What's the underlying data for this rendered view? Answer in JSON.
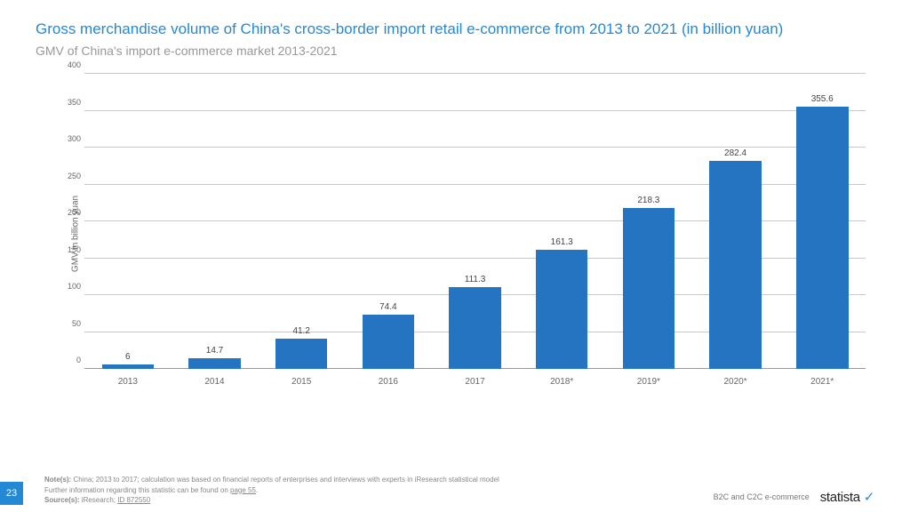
{
  "title": "Gross merchandise volume of China's cross-border import retail e-commerce from 2013 to 2021 (in billion yuan)",
  "subtitle": "GMV of China's import e-commerce market 2013-2021",
  "chart": {
    "type": "bar",
    "y_axis_label": "GMV in billion yuan",
    "ylim": [
      0,
      400
    ],
    "ytick_step": 50,
    "yticks": [
      0,
      50,
      100,
      150,
      200,
      250,
      300,
      350,
      400
    ],
    "categories": [
      "2013",
      "2014",
      "2015",
      "2016",
      "2017",
      "2018*",
      "2019*",
      "2020*",
      "2021*"
    ],
    "values": [
      6,
      14.7,
      41.2,
      74.4,
      111.3,
      161.3,
      218.3,
      282.4,
      355.6
    ],
    "value_labels": [
      "6",
      "14.7",
      "41.2",
      "74.4",
      "111.3",
      "161.3",
      "218.3",
      "282.4",
      "355.6"
    ],
    "bar_color": "#2474c2",
    "grid_color": "#c8c8c8",
    "background_color": "#ffffff",
    "tick_font_size": 9,
    "tick_color": "#666666",
    "value_label_font_size": 10,
    "value_label_color": "#444444",
    "bar_width_ratio": 0.6
  },
  "footer": {
    "note_label": "Note(s):",
    "note_text": " China; 2013 to 2017; calculation was based on financial reports of enterprises and interviews with experts in iResearch statistical model",
    "further_info_pre": "Further information regarding this statistic can be found on ",
    "further_info_link": "page 55",
    "further_info_post": ".",
    "source_label": "Source(s):",
    "source_text": " iResearch; ",
    "source_id": "ID 872550",
    "page_number": "23",
    "category": "B2C and C2C e-commerce",
    "brand": "statista",
    "brand_dot": "✓"
  },
  "colors": {
    "title": "#2489d4",
    "subtitle": "#989898",
    "badge_bg": "#2489d4",
    "brand_accent": "#2489d4"
  }
}
